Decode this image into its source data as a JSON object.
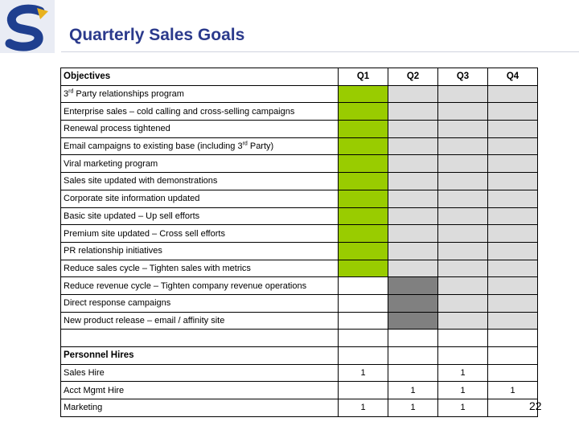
{
  "header": {
    "title": "Quarterly Sales Goals"
  },
  "table": {
    "columns": [
      "Objectives",
      "Q1",
      "Q2",
      "Q3",
      "Q4"
    ],
    "objectives": [
      {
        "pre": "3",
        "sup": "rd",
        "post": " Party relationships program",
        "fills": [
          "green",
          "light",
          "light",
          "light"
        ]
      },
      {
        "pre": "Enterprise sales – cold calling and cross-selling campaigns",
        "sup": "",
        "post": "",
        "fills": [
          "green",
          "light",
          "light",
          "light"
        ]
      },
      {
        "pre": "Renewal process tightened",
        "sup": "",
        "post": "",
        "fills": [
          "green",
          "light",
          "light",
          "light"
        ]
      },
      {
        "pre": "Email campaigns to existing base (including 3",
        "sup": "rd",
        "post": " Party)",
        "fills": [
          "green",
          "light",
          "light",
          "light"
        ]
      },
      {
        "pre": "Viral marketing program",
        "sup": "",
        "post": "",
        "fills": [
          "green",
          "light",
          "light",
          "light"
        ]
      },
      {
        "pre": "Sales site updated with demonstrations",
        "sup": "",
        "post": "",
        "fills": [
          "green",
          "light",
          "light",
          "light"
        ]
      },
      {
        "pre": "Corporate site information updated",
        "sup": "",
        "post": "",
        "fills": [
          "green",
          "light",
          "light",
          "light"
        ]
      },
      {
        "pre": "Basic site updated – Up sell efforts",
        "sup": "",
        "post": "",
        "fills": [
          "green",
          "light",
          "light",
          "light"
        ]
      },
      {
        "pre": "Premium site updated – Cross sell efforts",
        "sup": "",
        "post": "",
        "fills": [
          "green",
          "light",
          "light",
          "light"
        ]
      },
      {
        "pre": "PR relationship initiatives",
        "sup": "",
        "post": "",
        "fills": [
          "green",
          "light",
          "light",
          "light"
        ]
      },
      {
        "pre": "Reduce sales cycle – Tighten sales with metrics",
        "sup": "",
        "post": "",
        "fills": [
          "green",
          "light",
          "light",
          "light"
        ]
      },
      {
        "pre": "Reduce revenue cycle – Tighten company revenue operations",
        "sup": "",
        "post": "",
        "fills": [
          "none",
          "dark",
          "light",
          "light"
        ]
      },
      {
        "pre": "Direct response campaigns",
        "sup": "",
        "post": "",
        "fills": [
          "none",
          "dark",
          "light",
          "light"
        ]
      },
      {
        "pre": "New product release – email / affinity site",
        "sup": "",
        "post": "",
        "fills": [
          "none",
          "dark",
          "light",
          "light"
        ]
      },
      {
        "pre": "",
        "sup": "",
        "post": "",
        "fills": [
          "none",
          "none",
          "none",
          "none"
        ]
      }
    ],
    "personnel_heading": "Personnel Hires",
    "personnel": [
      {
        "label": "Sales Hire",
        "values": [
          "1",
          "",
          "1",
          ""
        ]
      },
      {
        "label": "Acct Mgmt Hire",
        "values": [
          "",
          "1",
          "1",
          "1"
        ]
      },
      {
        "label": "Marketing",
        "values": [
          "1",
          "1",
          "1",
          ""
        ]
      }
    ]
  },
  "footer": {
    "slide_number": "22"
  },
  "colors": {
    "title": "#2b3a8c",
    "logo_blue": "#1f3f8f",
    "logo_gold": "#e8b21f",
    "fill_green": "#99cc00",
    "fill_light": "#dcdcdc",
    "fill_dark": "#808080"
  },
  "icons": {
    "logo": "company-logo-icon"
  }
}
